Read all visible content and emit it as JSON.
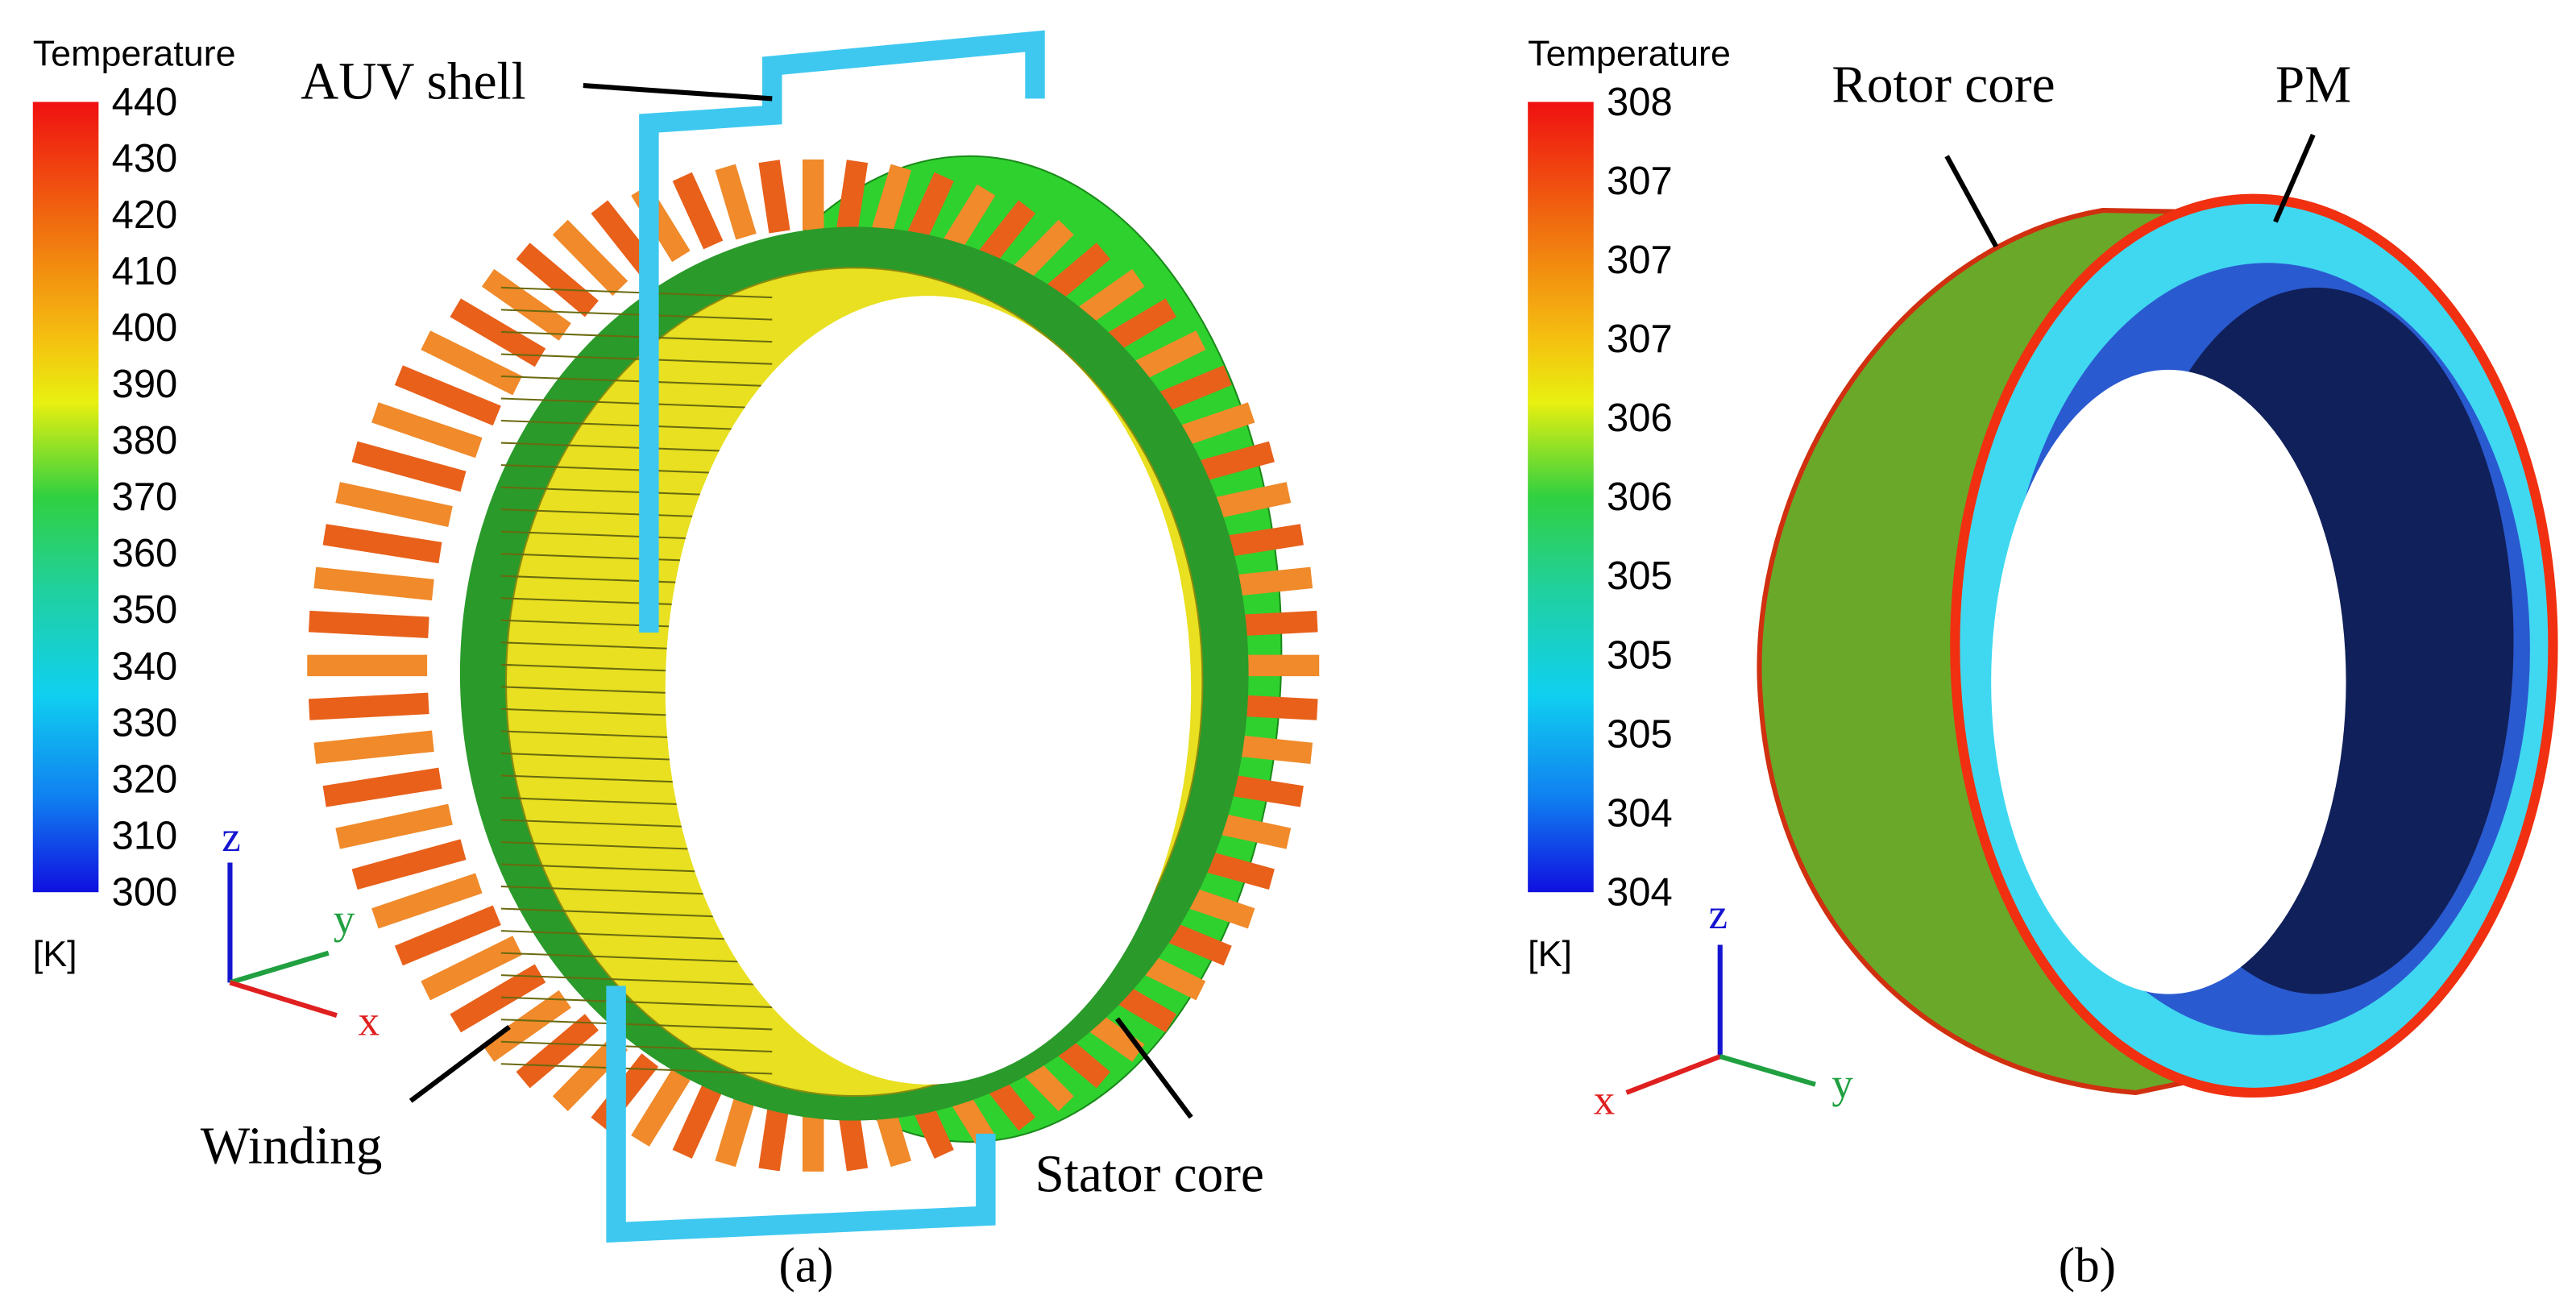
{
  "panel_a": {
    "legend_title": "Temperature",
    "legend_ticks": [
      440,
      430,
      420,
      410,
      400,
      390,
      380,
      370,
      360,
      350,
      340,
      330,
      320,
      310,
      300
    ],
    "legend_unit": "[K]",
    "labels": [
      "AUV shell",
      "Winding",
      "Stator core"
    ],
    "axes": [
      "z",
      "y",
      "x"
    ],
    "caption": "(a)"
  },
  "panel_b": {
    "legend_title": "Temperature",
    "legend_ticks": [
      308,
      307,
      307,
      307,
      306,
      306,
      305,
      305,
      305,
      304,
      304
    ],
    "legend_unit": "[K]",
    "labels": [
      "Rotor core",
      "PM"
    ],
    "axes": [
      "z",
      "x",
      "y"
    ],
    "caption": "(b)"
  }
}
